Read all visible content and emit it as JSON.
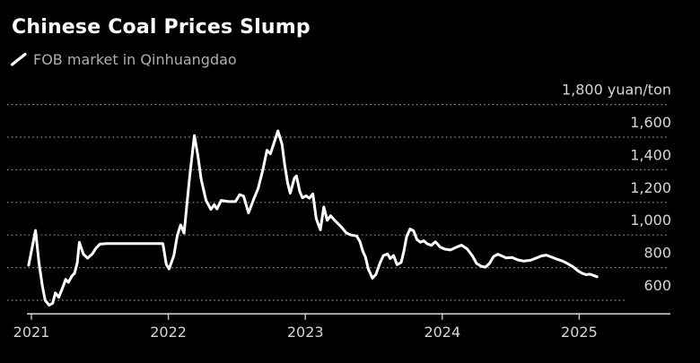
{
  "header": {
    "title": "Chinese Coal Prices Slump",
    "legend_label": "FOB market in Qinhuangdao"
  },
  "colors": {
    "background": "#000000",
    "title_text": "#ffffff",
    "legend_text": "#aeaeae",
    "axis_label_text": "#d5d5d5",
    "gridline": "#8f8f8f",
    "axis_line": "#c9c9c9",
    "series_line": "#ffffff"
  },
  "chart_data": {
    "type": "line",
    "title": "Chinese Coal Prices Slump",
    "series_name": "FOB market in Qinhuangdao",
    "unit": "yuan/ton",
    "grid": "horizontal-dotted",
    "legend_position": "top-left",
    "y_axis_side": "right",
    "ylim": [
      520,
      1950
    ],
    "xlim_years": [
      2020.97,
      2025.67
    ],
    "x_ticks": [
      {
        "value": 2021,
        "label": "2021"
      },
      {
        "value": 2022,
        "label": "2022"
      },
      {
        "value": 2023,
        "label": "2023"
      },
      {
        "value": 2024,
        "label": "2024"
      },
      {
        "value": 2025,
        "label": "2025"
      }
    ],
    "y_ticks": [
      {
        "value": 1800,
        "label": "1,800 yuan/ton"
      },
      {
        "value": 1600,
        "label": "1,600"
      },
      {
        "value": 1400,
        "label": "1,400"
      },
      {
        "value": 1200,
        "label": "1,200"
      },
      {
        "value": 1000,
        "label": "1,000"
      },
      {
        "value": 800,
        "label": "800"
      },
      {
        "value": 600,
        "label": "600"
      }
    ],
    "points": [
      [
        2020.98,
        815
      ],
      [
        2021.03,
        1028
      ],
      [
        2021.055,
        830
      ],
      [
        2021.08,
        688
      ],
      [
        2021.1,
        600
      ],
      [
        2021.13,
        570
      ],
      [
        2021.155,
        582
      ],
      [
        2021.175,
        645
      ],
      [
        2021.2,
        618
      ],
      [
        2021.23,
        682
      ],
      [
        2021.25,
        728
      ],
      [
        2021.27,
        710
      ],
      [
        2021.295,
        748
      ],
      [
        2021.315,
        766
      ],
      [
        2021.335,
        830
      ],
      [
        2021.35,
        955
      ],
      [
        2021.38,
        882
      ],
      [
        2021.41,
        858
      ],
      [
        2021.445,
        884
      ],
      [
        2021.47,
        918
      ],
      [
        2021.5,
        944
      ],
      [
        2021.55,
        948
      ],
      [
        2021.65,
        948
      ],
      [
        2021.75,
        948
      ],
      [
        2021.85,
        948
      ],
      [
        2021.96,
        948
      ],
      [
        2021.985,
        820
      ],
      [
        2022.005,
        792
      ],
      [
        2022.04,
        873
      ],
      [
        2022.065,
        995
      ],
      [
        2022.09,
        1062
      ],
      [
        2022.115,
        1012
      ],
      [
        2022.155,
        1355
      ],
      [
        2022.19,
        1610
      ],
      [
        2022.215,
        1490
      ],
      [
        2022.24,
        1340
      ],
      [
        2022.275,
        1212
      ],
      [
        2022.31,
        1157
      ],
      [
        2022.335,
        1185
      ],
      [
        2022.355,
        1160
      ],
      [
        2022.385,
        1212
      ],
      [
        2022.44,
        1205
      ],
      [
        2022.49,
        1205
      ],
      [
        2022.52,
        1248
      ],
      [
        2022.55,
        1238
      ],
      [
        2022.585,
        1135
      ],
      [
        2022.62,
        1212
      ],
      [
        2022.655,
        1285
      ],
      [
        2022.69,
        1400
      ],
      [
        2022.72,
        1520
      ],
      [
        2022.745,
        1498
      ],
      [
        2022.8,
        1638
      ],
      [
        2022.83,
        1555
      ],
      [
        2022.85,
        1428
      ],
      [
        2022.87,
        1322
      ],
      [
        2022.89,
        1256
      ],
      [
        2022.92,
        1348
      ],
      [
        2022.935,
        1362
      ],
      [
        2022.96,
        1265
      ],
      [
        2022.98,
        1228
      ],
      [
        2023.005,
        1240
      ],
      [
        2023.03,
        1226
      ],
      [
        2023.055,
        1252
      ],
      [
        2023.08,
        1100
      ],
      [
        2023.11,
        1032
      ],
      [
        2023.135,
        1172
      ],
      [
        2023.16,
        1090
      ],
      [
        2023.185,
        1118
      ],
      [
        2023.22,
        1085
      ],
      [
        2023.265,
        1048
      ],
      [
        2023.3,
        1012
      ],
      [
        2023.335,
        1000
      ],
      [
        2023.375,
        994
      ],
      [
        2023.4,
        958
      ],
      [
        2023.42,
        900
      ],
      [
        2023.44,
        864
      ],
      [
        2023.46,
        792
      ],
      [
        2023.49,
        735
      ],
      [
        2023.515,
        757
      ],
      [
        2023.545,
        828
      ],
      [
        2023.57,
        874
      ],
      [
        2023.6,
        884
      ],
      [
        2023.62,
        856
      ],
      [
        2023.645,
        874
      ],
      [
        2023.67,
        818
      ],
      [
        2023.7,
        832
      ],
      [
        2023.72,
        902
      ],
      [
        2023.74,
        990
      ],
      [
        2023.765,
        1037
      ],
      [
        2023.79,
        1026
      ],
      [
        2023.815,
        972
      ],
      [
        2023.84,
        956
      ],
      [
        2023.865,
        965
      ],
      [
        2023.89,
        946
      ],
      [
        2023.92,
        937
      ],
      [
        2023.95,
        958
      ],
      [
        2023.985,
        926
      ],
      [
        2024.02,
        913
      ],
      [
        2024.06,
        908
      ],
      [
        2024.105,
        926
      ],
      [
        2024.14,
        938
      ],
      [
        2024.18,
        916
      ],
      [
        2024.22,
        872
      ],
      [
        2024.25,
        826
      ],
      [
        2024.285,
        808
      ],
      [
        2024.315,
        803
      ],
      [
        2024.345,
        826
      ],
      [
        2024.375,
        868
      ],
      [
        2024.405,
        882
      ],
      [
        2024.435,
        872
      ],
      [
        2024.465,
        860
      ],
      [
        2024.51,
        862
      ],
      [
        2024.55,
        848
      ],
      [
        2024.595,
        840
      ],
      [
        2024.645,
        845
      ],
      [
        2024.69,
        860
      ],
      [
        2024.725,
        872
      ],
      [
        2024.76,
        877
      ],
      [
        2024.795,
        866
      ],
      [
        2024.84,
        851
      ],
      [
        2024.88,
        840
      ],
      [
        2024.92,
        822
      ],
      [
        2024.955,
        805
      ],
      [
        2024.99,
        781
      ],
      [
        2025.02,
        766
      ],
      [
        2025.05,
        757
      ],
      [
        2025.08,
        760
      ],
      [
        2025.105,
        752
      ],
      [
        2025.13,
        744
      ]
    ]
  }
}
